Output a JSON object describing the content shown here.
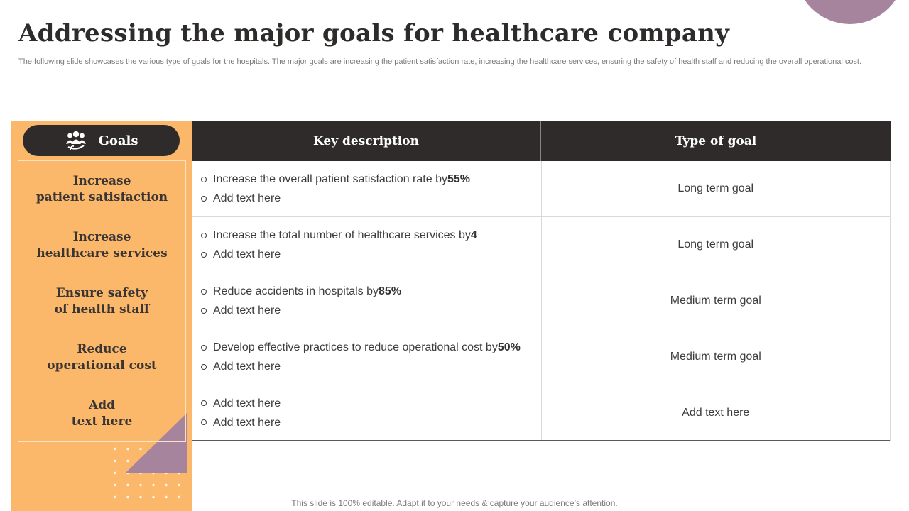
{
  "title": "Addressing the major goals for healthcare company",
  "subtitle": "The following slide showcases the various type of goals for the hospitals. The major goals are increasing the patient satisfaction rate, increasing the healthcare services, ensuring the safety of health staff and reducing the overall operational cost.",
  "goals_panel": {
    "header_label": "Goals",
    "header_icon": "team-icon",
    "items": [
      "Increase\npatient satisfaction",
      "Increase\nhealthcare services",
      "Ensure safety\nof health staff",
      "Reduce\noperational cost",
      "Add\ntext here"
    ]
  },
  "table": {
    "headers": {
      "description": "Key description",
      "type": "Type of goal"
    },
    "rows": [
      {
        "line1": {
          "text": "Increase  the overall patient satisfaction rate by ",
          "value": "55%"
        },
        "line2": "Add text here",
        "type": "Long term goal"
      },
      {
        "line1": {
          "text": "Increase  the total number of healthcare services by ",
          "value": "4"
        },
        "line2": "Add text here",
        "type": "Long term goal"
      },
      {
        "line1": {
          "text": "Reduce accidents in hospitals by ",
          "value": "85%"
        },
        "line2": "Add text here",
        "type": "Medium term goal"
      },
      {
        "line1": {
          "text": "Develop effective practices to reduce operational cost by ",
          "value": "50%"
        },
        "line2": "Add text here",
        "type": "Medium term goal"
      },
      {
        "line1": {
          "text": "Add text here",
          "value": ""
        },
        "line2": "Add text here",
        "type": "Add text here"
      }
    ]
  },
  "footer_note": "This slide is 100% editable. Adapt it to your needs & capture your audience’s attention.",
  "colors": {
    "accent_orange": "#fbb86a",
    "dark": "#2f2b2b",
    "purple": "#a7849d"
  }
}
